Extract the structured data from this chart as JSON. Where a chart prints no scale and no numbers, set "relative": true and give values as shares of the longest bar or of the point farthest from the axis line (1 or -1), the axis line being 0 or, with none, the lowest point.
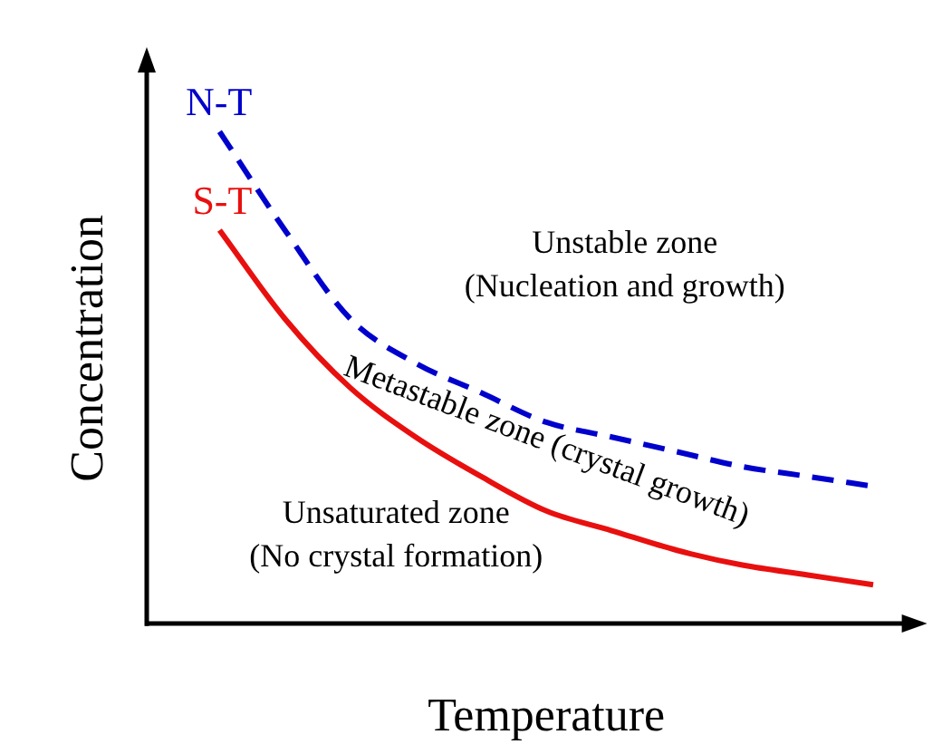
{
  "chart_data": {
    "type": "line",
    "relative": true,
    "xlabel": "Temperature",
    "ylabel": "Concentration",
    "marker": "none",
    "grid": false,
    "legend": false,
    "categories": [
      null,
      null,
      null,
      null,
      null,
      null,
      null,
      null,
      null,
      null,
      null
    ],
    "series": [
      {
        "name": "N-T",
        "color": "#0000cc",
        "line_style": "dashed",
        "values": [
          1,
          0.8,
          0.62,
          0.53,
          0.47,
          0.41,
          0.38,
          0.35,
          0.32,
          0.3,
          0.28
        ]
      },
      {
        "name": "S-T",
        "color": "#e8100f",
        "line_style": "solid",
        "values": [
          0.8,
          0.62,
          0.48,
          0.38,
          0.3,
          0.23,
          0.19,
          0.15,
          0.12,
          0.1,
          0.08
        ]
      }
    ],
    "annotations": [
      "Unstable zone\n(Nucleation and growth)",
      "Metastable zone (crystal growth)",
      "Unsaturated zone\n(No crystal formation)"
    ]
  }
}
